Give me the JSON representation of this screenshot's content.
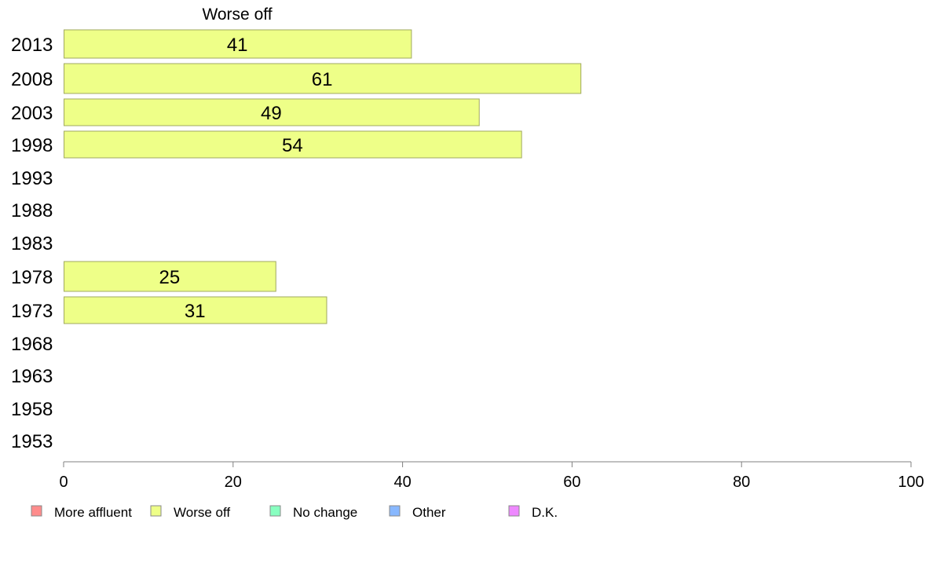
{
  "chart_data": {
    "type": "bar",
    "orientation": "horizontal",
    "title": "Worse off",
    "categories": [
      "2013",
      "2008",
      "2003",
      "1998",
      "1993",
      "1988",
      "1983",
      "1978",
      "1973",
      "1968",
      "1963",
      "1958",
      "1953"
    ],
    "series": [
      {
        "name": "Worse off",
        "values": [
          41,
          61,
          49,
          54,
          null,
          null,
          null,
          25,
          31,
          null,
          null,
          null,
          null
        ]
      }
    ],
    "xlim": [
      0,
      100
    ],
    "xticks": [
      0,
      20,
      40,
      60,
      80,
      100
    ],
    "grid": false,
    "legend": {
      "placement": "bottom-left",
      "entries": [
        {
          "label": "More affluent",
          "color": "#ff8c8c"
        },
        {
          "label": "Worse off",
          "color": "#eeff88"
        },
        {
          "label": "No change",
          "color": "#88ffc0"
        },
        {
          "label": "Other",
          "color": "#88b8ff"
        },
        {
          "label": "D.K.",
          "color": "#ee88ff"
        }
      ]
    },
    "bar_color": "#eeff88",
    "bar_stroke": "#a0a860"
  }
}
